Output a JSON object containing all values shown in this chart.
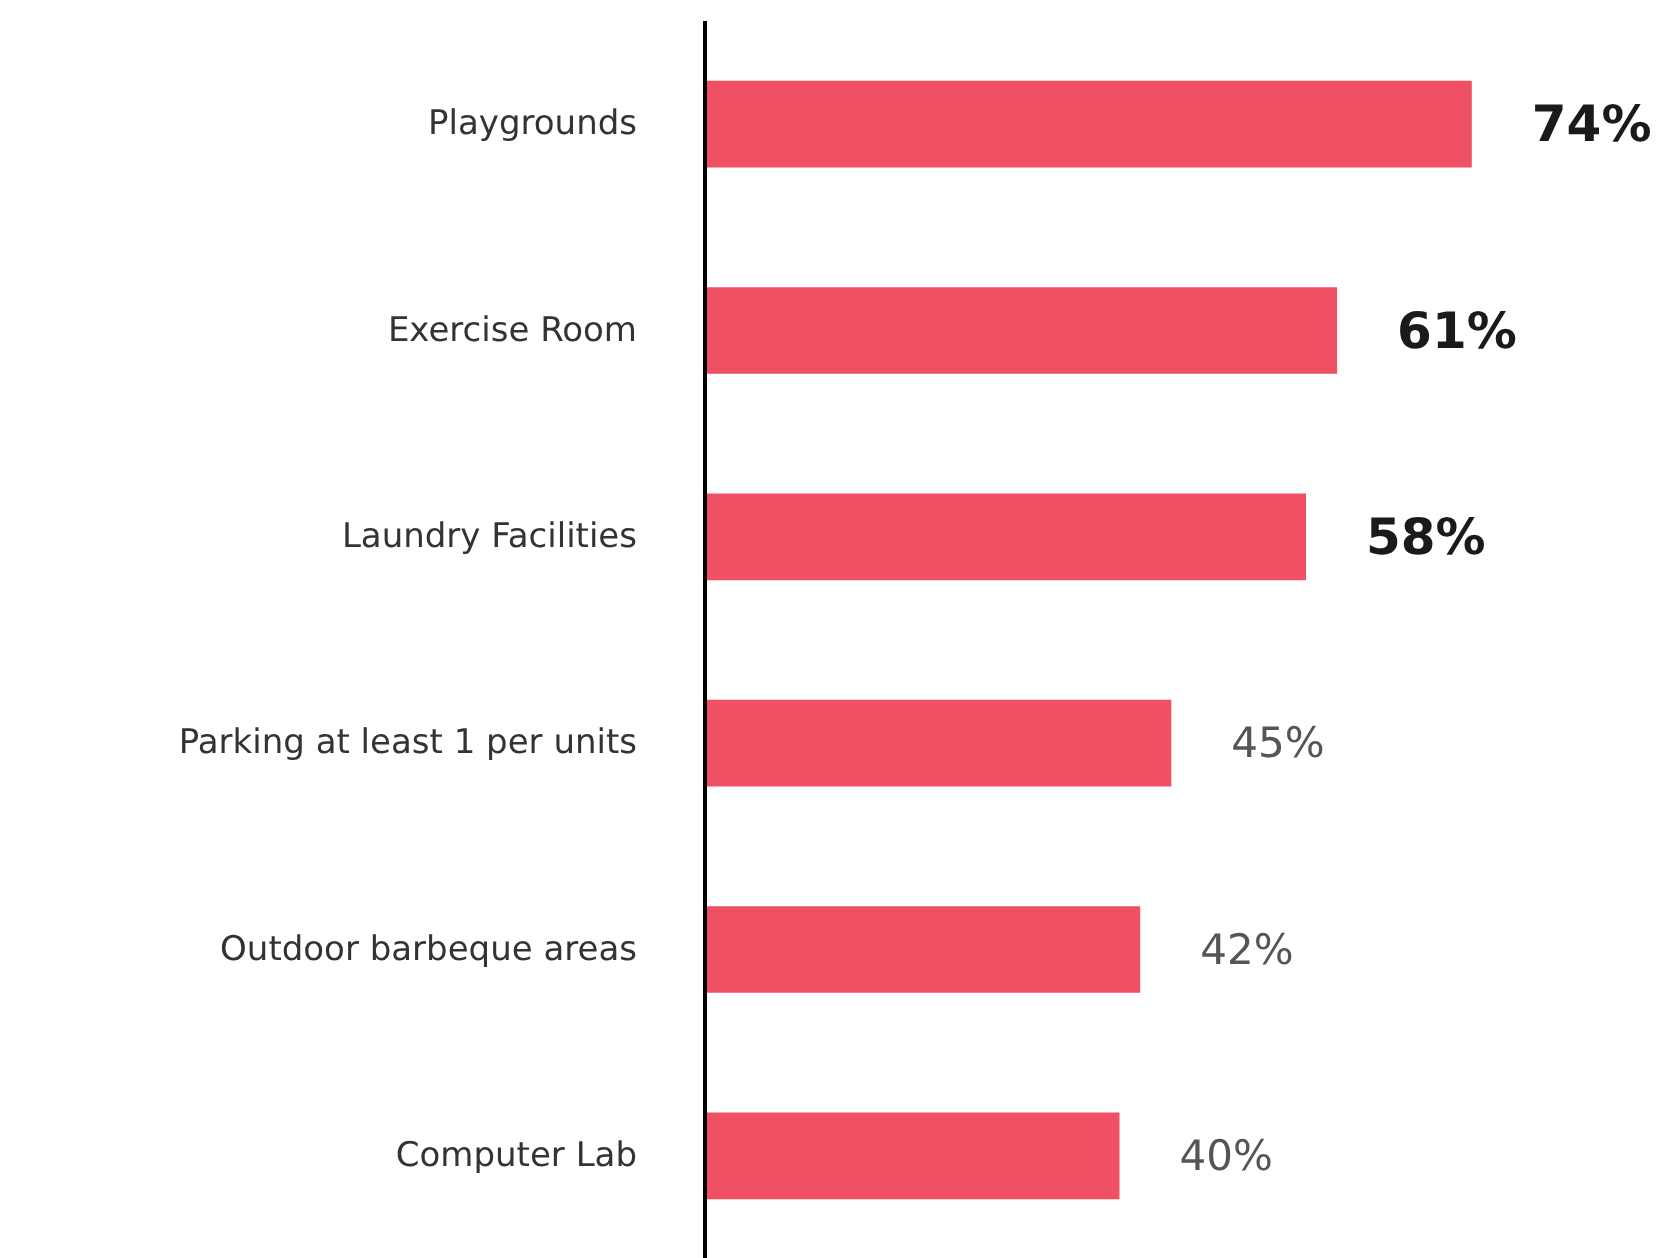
{
  "chart_data": {
    "type": "bar",
    "orientation": "horizontal",
    "categories": [
      "Playgrounds",
      "Exercise Room",
      "Laundry Facilities",
      "Parking at least 1 per units",
      "Outdoor barbeque areas",
      "Computer Lab"
    ],
    "values": [
      74,
      61,
      58,
      45,
      42,
      40
    ],
    "color": "#ef5064",
    "value_labels": [
      "74%",
      "61%",
      "58%",
      "45%",
      "42%",
      "40%"
    ],
    "grid": false
  }
}
